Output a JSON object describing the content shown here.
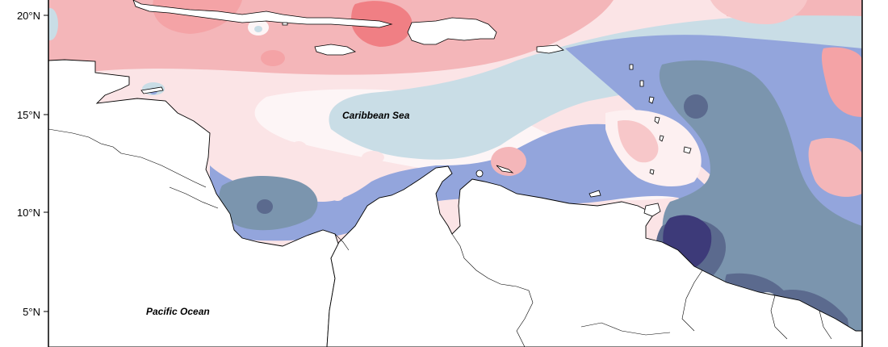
{
  "map": {
    "latitude_ticks": [
      {
        "label": "20°N",
        "value": 20
      },
      {
        "label": "15°N",
        "value": 15
      },
      {
        "label": "10°N",
        "value": 10
      },
      {
        "label": "5°N",
        "value": 5
      }
    ],
    "labels": {
      "caribbean_sea": "Caribbean Sea",
      "pacific_ocean": "Pacific Ocean"
    },
    "color_scale": {
      "dark_red": "#f07f84",
      "red": "#f4a3a6",
      "light_red": "#f7c7c9",
      "pale_pink": "#fbe4e6",
      "neutral": "#fdf5f6",
      "light_blue": "#c9dde6",
      "blue": "#93a5dc",
      "steel_blue": "#7b95ae",
      "slate": "#5b6a8e",
      "navy": "#3d3a79",
      "land": "#ffffff"
    }
  }
}
